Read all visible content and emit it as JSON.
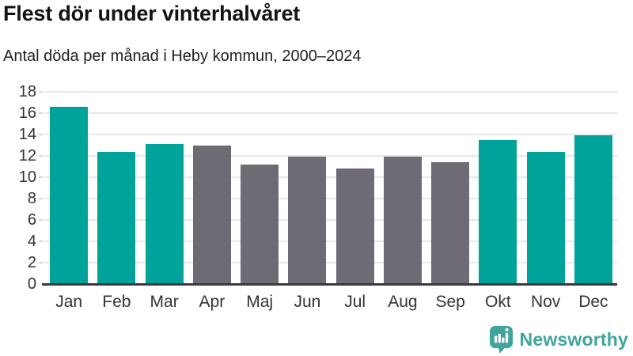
{
  "header": {
    "title": "Flest dör under vinterhalvåret",
    "subtitle": "Antal döda per månad i Heby kommun, 2000–2024"
  },
  "chart_data": {
    "type": "bar",
    "title": "Flest dör under vinterhalvåret",
    "subtitle": "Antal döda per månad i Heby kommun, 2000–2024",
    "categories": [
      "Jan",
      "Feb",
      "Mar",
      "Apr",
      "Maj",
      "Jun",
      "Jul",
      "Aug",
      "Sep",
      "Okt",
      "Nov",
      "Dec"
    ],
    "values": [
      16.6,
      12.4,
      13.1,
      13.0,
      11.2,
      11.9,
      10.8,
      11.9,
      11.4,
      13.5,
      12.4,
      13.9
    ],
    "bar_colors": [
      "teal",
      "teal",
      "teal",
      "gray",
      "gray",
      "gray",
      "gray",
      "gray",
      "gray",
      "teal",
      "teal",
      "teal"
    ],
    "colors": {
      "teal": "#00a39a",
      "gray": "#6e6b74"
    },
    "xlabel": "",
    "ylabel": "",
    "ylim": [
      0,
      18
    ],
    "yticks": [
      0,
      2,
      4,
      6,
      8,
      10,
      12,
      14,
      16,
      18
    ],
    "grid": true,
    "legend": false,
    "highlight_meaning": "winter months (Okt–Mar) highlighted in teal"
  },
  "footer": {
    "brand_name": "Newsworthy",
    "brand_color": "#3fa59c",
    "brand_icon": "bar-chart-speech-bubble-icon"
  }
}
